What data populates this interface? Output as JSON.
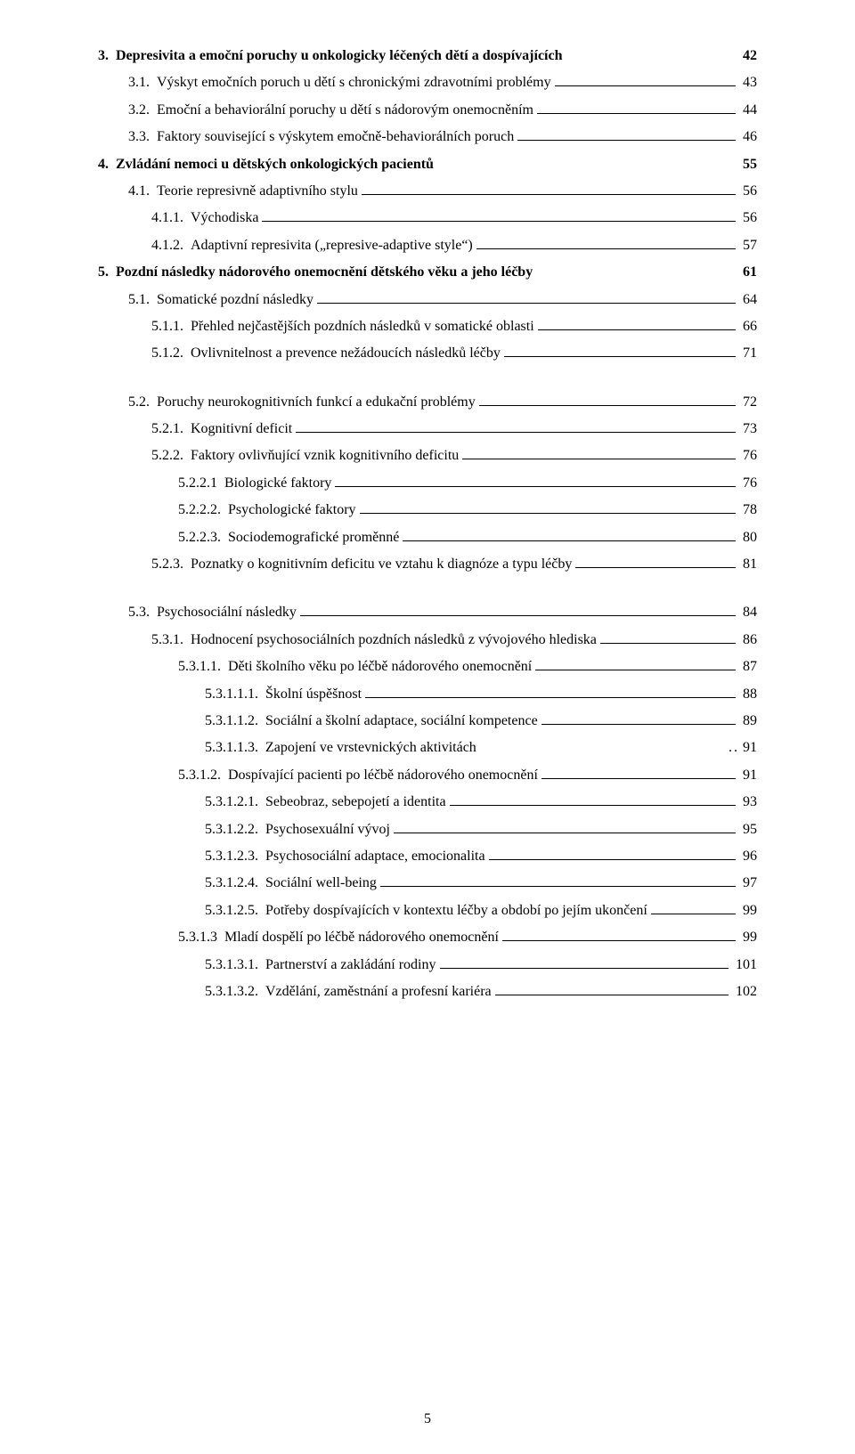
{
  "pageNumber": "5",
  "entries": [
    {
      "num": "3.",
      "title": "Depresivita a emoční poruchy u onkologicky léčených dětí a dospívajících",
      "page": "42",
      "level": 0,
      "bold": true,
      "leader": false
    },
    {
      "num": "3.1.",
      "title": "Výskyt emočních poruch u dětí s chronickými zdravotními problémy",
      "page": "43",
      "level": 1,
      "bold": false,
      "leader": true
    },
    {
      "num": "3.2.",
      "title": "Emoční a behaviorální poruchy u dětí s nádorovým onemocněním",
      "page": "44",
      "level": 1,
      "bold": false,
      "leader": true
    },
    {
      "num": "3.3.",
      "title": "Faktory související s výskytem emočně-behaviorálních poruch",
      "page": "46",
      "level": 1,
      "bold": false,
      "leader": true
    },
    {
      "num": "4.",
      "title": "Zvládání nemoci u dětských onkologických pacientů",
      "page": "55",
      "level": 0,
      "bold": true,
      "leader": false
    },
    {
      "num": "4.1.",
      "title": "Teorie represivně adaptivního stylu",
      "page": "56",
      "level": 1,
      "bold": false,
      "leader": true
    },
    {
      "num": "4.1.1.",
      "title": "Východiska",
      "page": "56",
      "level": 2,
      "bold": false,
      "leader": true
    },
    {
      "num": "4.1.2.",
      "title": "Adaptivní represivita („represive-adaptive style“)",
      "page": "57",
      "level": 2,
      "bold": false,
      "leader": true
    },
    {
      "num": "5.",
      "title": "Pozdní následky nádorového onemocnění dětského věku a jeho léčby",
      "page": "61",
      "level": 0,
      "bold": true,
      "leader": false
    },
    {
      "num": "5.1.",
      "title": "Somatické pozdní následky",
      "page": "64",
      "level": 1,
      "bold": false,
      "leader": true
    },
    {
      "num": "5.1.1.",
      "title": "Přehled nejčastějších pozdních následků v somatické oblasti",
      "page": "66",
      "level": 2,
      "bold": false,
      "leader": true
    },
    {
      "num": "5.1.2.",
      "title": "Ovlivnitelnost a prevence nežádoucích následků léčby",
      "page": "71",
      "level": 2,
      "bold": false,
      "leader": true
    },
    {
      "gap": true
    },
    {
      "num": "5.2.",
      "title": "Poruchy neurokognitivních funkcí a edukační problémy",
      "page": "72",
      "level": 1,
      "bold": false,
      "leader": true
    },
    {
      "num": "5.2.1.",
      "title": "Kognitivní deficit",
      "page": "73",
      "level": 2,
      "bold": false,
      "leader": true
    },
    {
      "num": "5.2.2.",
      "title": "Faktory ovlivňující vznik kognitivního deficitu",
      "page": "76",
      "level": 2,
      "bold": false,
      "leader": true
    },
    {
      "num": "5.2.2.1",
      "title": "Biologické faktory",
      "page": "76",
      "level": 3,
      "bold": false,
      "leader": true
    },
    {
      "num": "5.2.2.2.",
      "title": "Psychologické faktory",
      "page": "78",
      "level": 3,
      "bold": false,
      "leader": true
    },
    {
      "num": "5.2.2.3.",
      "title": "Sociodemografické proměnné",
      "page": "80",
      "level": 3,
      "bold": false,
      "leader": true
    },
    {
      "num": "5.2.3.",
      "title": "Poznatky o kognitivním deficitu ve vztahu k diagnóze a typu léčby",
      "page": "81",
      "level": 2,
      "bold": false,
      "leader": true
    },
    {
      "gap": true
    },
    {
      "num": "5.3.",
      "title": "Psychosociální následky",
      "page": "84",
      "level": 1,
      "bold": false,
      "leader": true
    },
    {
      "num": "5.3.1.",
      "title": "Hodnocení psychosociálních pozdních následků z vývojového hlediska",
      "page": "86",
      "level": 2,
      "bold": false,
      "leader": true
    },
    {
      "num": "5.3.1.1.",
      "title": "Děti školního věku po léčbě nádorového onemocnění",
      "page": "87",
      "level": 3,
      "bold": false,
      "leader": true
    },
    {
      "num": "5.3.1.1.1.",
      "title": "Školní úspěšnost",
      "page": "88",
      "level": 4,
      "bold": false,
      "leader": true
    },
    {
      "num": "5.3.1.1.2.",
      "title": "Sociální a školní adaptace, sociální kompetence",
      "page": "89",
      "level": 4,
      "bold": false,
      "leader": true
    },
    {
      "num": "5.3.1.1.3.",
      "title": "Zapojení ve vrstevnických aktivitách",
      "page": "91",
      "level": 4,
      "bold": false,
      "leader": false,
      "dots": ".."
    },
    {
      "num": "5.3.1.2.",
      "title": "Dospívající pacienti po léčbě nádorového onemocnění",
      "page": "91",
      "level": 3,
      "bold": false,
      "leader": true
    },
    {
      "num": "5.3.1.2.1.",
      "title": "Sebeobraz, sebepojetí a identita",
      "page": "93",
      "level": 4,
      "bold": false,
      "leader": true
    },
    {
      "num": "5.3.1.2.2.",
      "title": "Psychosexuální vývoj",
      "page": "95",
      "level": 4,
      "bold": false,
      "leader": true
    },
    {
      "num": "5.3.1.2.3.",
      "title": "Psychosociální adaptace, emocionalita",
      "page": "96",
      "level": 4,
      "bold": false,
      "leader": true
    },
    {
      "num": "5.3.1.2.4.",
      "title": "Sociální well-being",
      "page": "97",
      "level": 4,
      "bold": false,
      "leader": true
    },
    {
      "num": "5.3.1.2.5.",
      "title": "Potřeby dospívajících v kontextu léčby a období po jejím ukončení",
      "page": "99",
      "level": 4,
      "bold": false,
      "leader": true
    },
    {
      "num": "5.3.1.3",
      "title": "Mladí dospělí po léčbě nádorového onemocnění",
      "page": "99",
      "level": 3,
      "bold": false,
      "leader": true
    },
    {
      "num": "5.3.1.3.1.",
      "title": "Partnerství a zakládání rodiny",
      "page": "101",
      "level": 4,
      "bold": false,
      "leader": true
    },
    {
      "num": "5.3.1.3.2.",
      "title": "Vzdělání, zaměstnání a profesní kariéra",
      "page": "102",
      "level": 4,
      "bold": false,
      "leader": true
    }
  ]
}
